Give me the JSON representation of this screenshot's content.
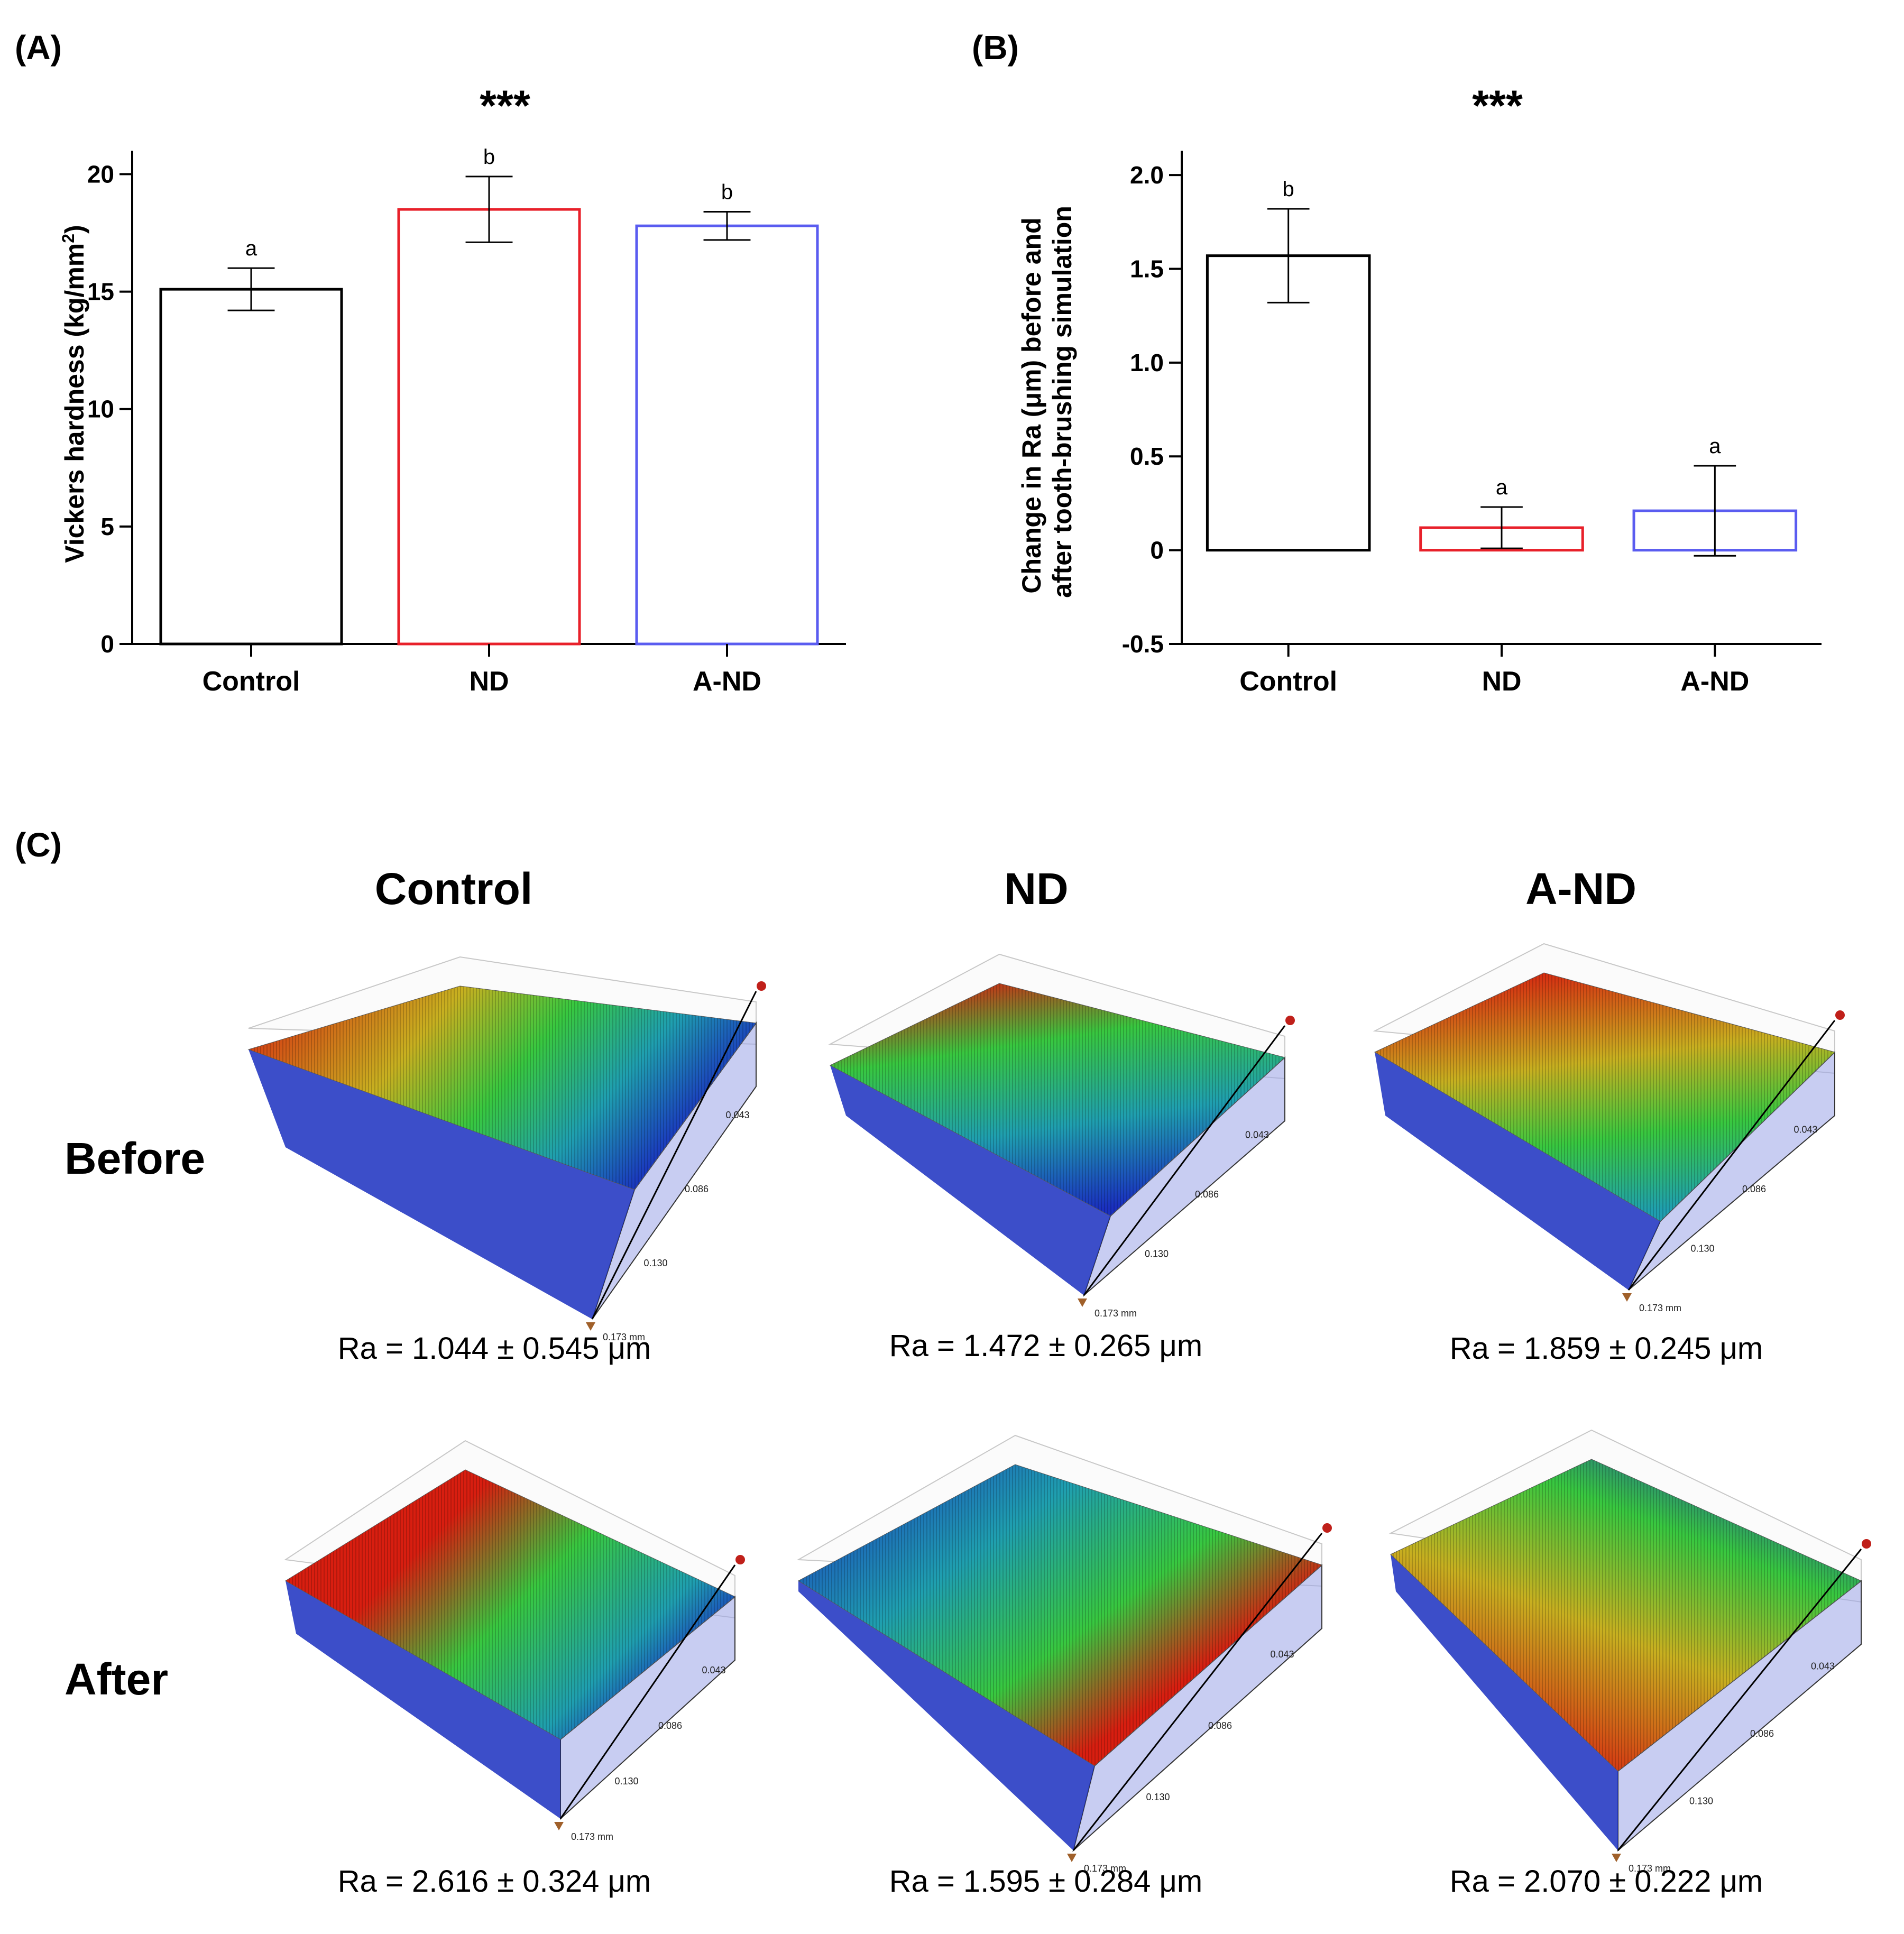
{
  "panels": {
    "a": {
      "label": "(A)",
      "stars": "***"
    },
    "b": {
      "label": "(B)",
      "stars": "***"
    },
    "c": {
      "label": "(C)"
    }
  },
  "chart_data": [
    {
      "type": "bar",
      "panel": "A",
      "categories": [
        "Control",
        "ND",
        "A-ND"
      ],
      "values": [
        15.1,
        18.5,
        17.8
      ],
      "errors": [
        0.9,
        1.4,
        0.6
      ],
      "significance_letters": [
        "a",
        "b",
        "b"
      ],
      "bar_colors": [
        "#000000",
        "#e8202a",
        "#5a5cf0"
      ],
      "ylabel_main": "Vickers hardness (kg/mm",
      "ylabel_sup": "2",
      "ylabel_end": ")",
      "ylim": [
        0,
        21
      ],
      "yticks": [
        0,
        5,
        10,
        15,
        20
      ],
      "ytick_labels": [
        "0",
        "5",
        "10",
        "15",
        "20"
      ]
    },
    {
      "type": "bar",
      "panel": "B",
      "categories": [
        "Control",
        "ND",
        "A-ND"
      ],
      "values": [
        1.57,
        0.12,
        0.21
      ],
      "errors": [
        0.25,
        0.11,
        0.24
      ],
      "significance_letters": [
        "b",
        "a",
        "a"
      ],
      "bar_colors": [
        "#000000",
        "#e8202a",
        "#5a5cf0"
      ],
      "ylabel_line1": "Change in Ra (μm) before and",
      "ylabel_line2": "after tooth-brushing simulation",
      "ylim": [
        -0.5,
        2.13
      ],
      "yticks": [
        -0.5,
        0,
        0.5,
        1.0,
        1.5,
        2.0
      ],
      "ytick_labels": [
        "-0.5",
        "0",
        "0.5",
        "1.0",
        "1.5",
        "2.0"
      ]
    }
  ],
  "surface_grid": {
    "columns": [
      "Control",
      "ND",
      "A-ND"
    ],
    "rows": [
      "Before",
      "After"
    ],
    "scale_labels": [
      "0.043",
      "0.086",
      "0.130",
      "0.173 mm"
    ],
    "ra_values": [
      [
        "Ra = 1.044 ± 0.545 μm",
        "Ra = 1.472 ± 0.265 μm",
        "Ra = 1.859 ± 0.245 μm"
      ],
      [
        "Ra = 2.616 ± 0.324 μm",
        "Ra = 1.595 ± 0.284 μm",
        "Ra = 2.070 ± 0.222 μm"
      ]
    ],
    "height_colors": [
      "#1a2fc0",
      "#1f9fb0",
      "#38c840",
      "#e8c020",
      "#d81e10"
    ]
  }
}
